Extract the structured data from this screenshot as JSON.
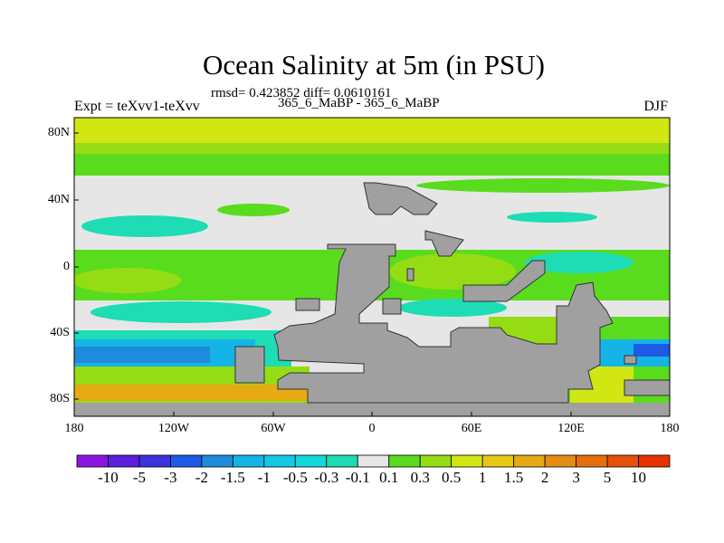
{
  "header": {
    "title": "Ocean Salinity at 5m (in PSU)",
    "stats": "rmsd= 0.423852 diff= 0.0610161",
    "comparison": "365_6_MaBP - 365_6_MaBP",
    "experiment": "Expt = teXvv1-teXvv",
    "season": "DJF"
  },
  "chart_data": {
    "type": "heatmap",
    "title": "Ocean Salinity at 5m (in PSU)",
    "xlabel": "",
    "ylabel": "",
    "xlim": [
      -180,
      180
    ],
    "ylim": [
      -90,
      90
    ],
    "x_ticks": [
      "180",
      "120W",
      "60W",
      "0",
      "60E",
      "120E",
      "180"
    ],
    "y_ticks": [
      "80N",
      "40N",
      "0",
      "40S",
      "80S"
    ],
    "colorbar": {
      "levels": [
        "-10",
        "-5",
        "-3",
        "-2",
        "-1.5",
        "-1",
        "-0.5",
        "-0.3",
        "-0.1",
        "0.1",
        "0.3",
        "0.5",
        "1",
        "1.5",
        "2",
        "3",
        "5",
        "10"
      ],
      "colors": [
        "#8c14e0",
        "#5a1edc",
        "#3c32dc",
        "#1e5ae6",
        "#1e8cdc",
        "#14b4e6",
        "#14c8e6",
        "#14d7dc",
        "#1edcb4",
        "#e6e6e6",
        "#5adc1e",
        "#96dc14",
        "#d2e614",
        "#e6c814",
        "#e6aa14",
        "#e68c14",
        "#e66e0a",
        "#e6500a",
        "#e63200"
      ]
    },
    "land_color": "#a0a0a0",
    "description_values": "difference field mostly between -0.1 and 0.5, higher (1 to 3) near southern high latitudes, negative (-0.5 to -2) in southern western ocean"
  }
}
